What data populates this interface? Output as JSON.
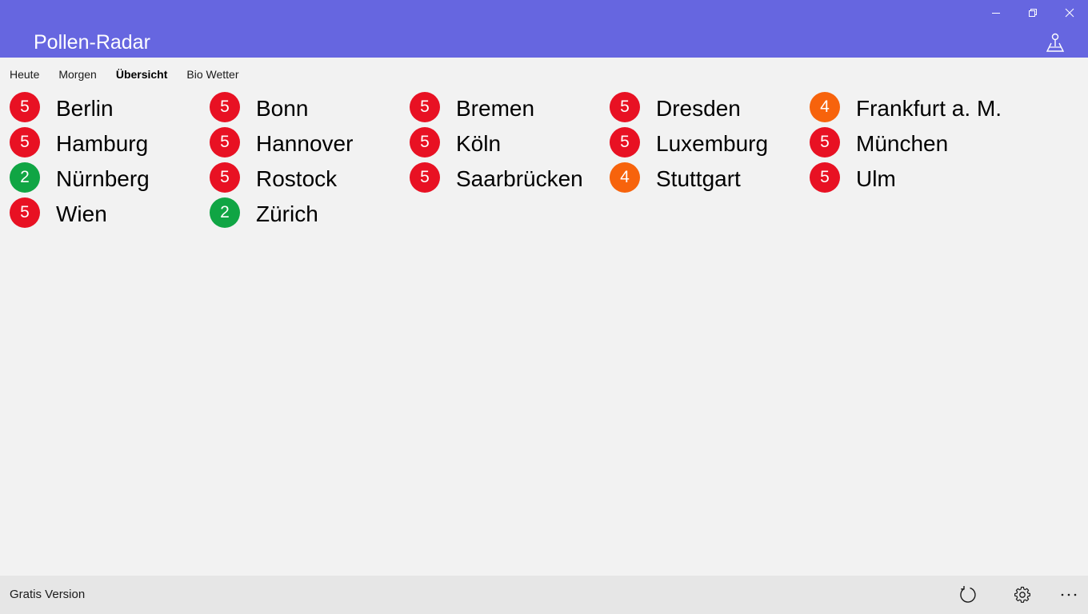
{
  "app": {
    "title": "Pollen-Radar"
  },
  "window_controls": {
    "minimize_icon": "minimize-icon",
    "restore_icon": "restore-icon",
    "close_icon": "close-icon"
  },
  "header": {
    "map_icon": "map-pin-icon"
  },
  "tabs": [
    {
      "label": "Heute",
      "active": false
    },
    {
      "label": "Morgen",
      "active": false
    },
    {
      "label": "Übersicht",
      "active": true
    },
    {
      "label": "Bio Wetter",
      "active": false
    }
  ],
  "colors": {
    "accent": "#6666e0",
    "level_high": "#e81123",
    "level_medium": "#f7630c",
    "level_low": "#10a544"
  },
  "cities": [
    {
      "name": "Berlin",
      "level": "5"
    },
    {
      "name": "Bonn",
      "level": "5"
    },
    {
      "name": "Bremen",
      "level": "5"
    },
    {
      "name": "Dresden",
      "level": "5"
    },
    {
      "name": "Frankfurt a. M.",
      "level": "4"
    },
    {
      "name": "Hamburg",
      "level": "5"
    },
    {
      "name": "Hannover",
      "level": "5"
    },
    {
      "name": "Köln",
      "level": "5"
    },
    {
      "name": "Luxemburg",
      "level": "5"
    },
    {
      "name": "München",
      "level": "5"
    },
    {
      "name": "Nürnberg",
      "level": "2"
    },
    {
      "name": "Rostock",
      "level": "5"
    },
    {
      "name": "Saarbrücken",
      "level": "5"
    },
    {
      "name": "Stuttgart",
      "level": "4"
    },
    {
      "name": "Ulm",
      "level": "5"
    },
    {
      "name": "Wien",
      "level": "5"
    },
    {
      "name": "Zürich",
      "level": "2"
    }
  ],
  "footer": {
    "version_label": "Gratis Version",
    "refresh_icon": "refresh-icon",
    "settings_icon": "gear-icon",
    "more_icon": "more-icon"
  }
}
